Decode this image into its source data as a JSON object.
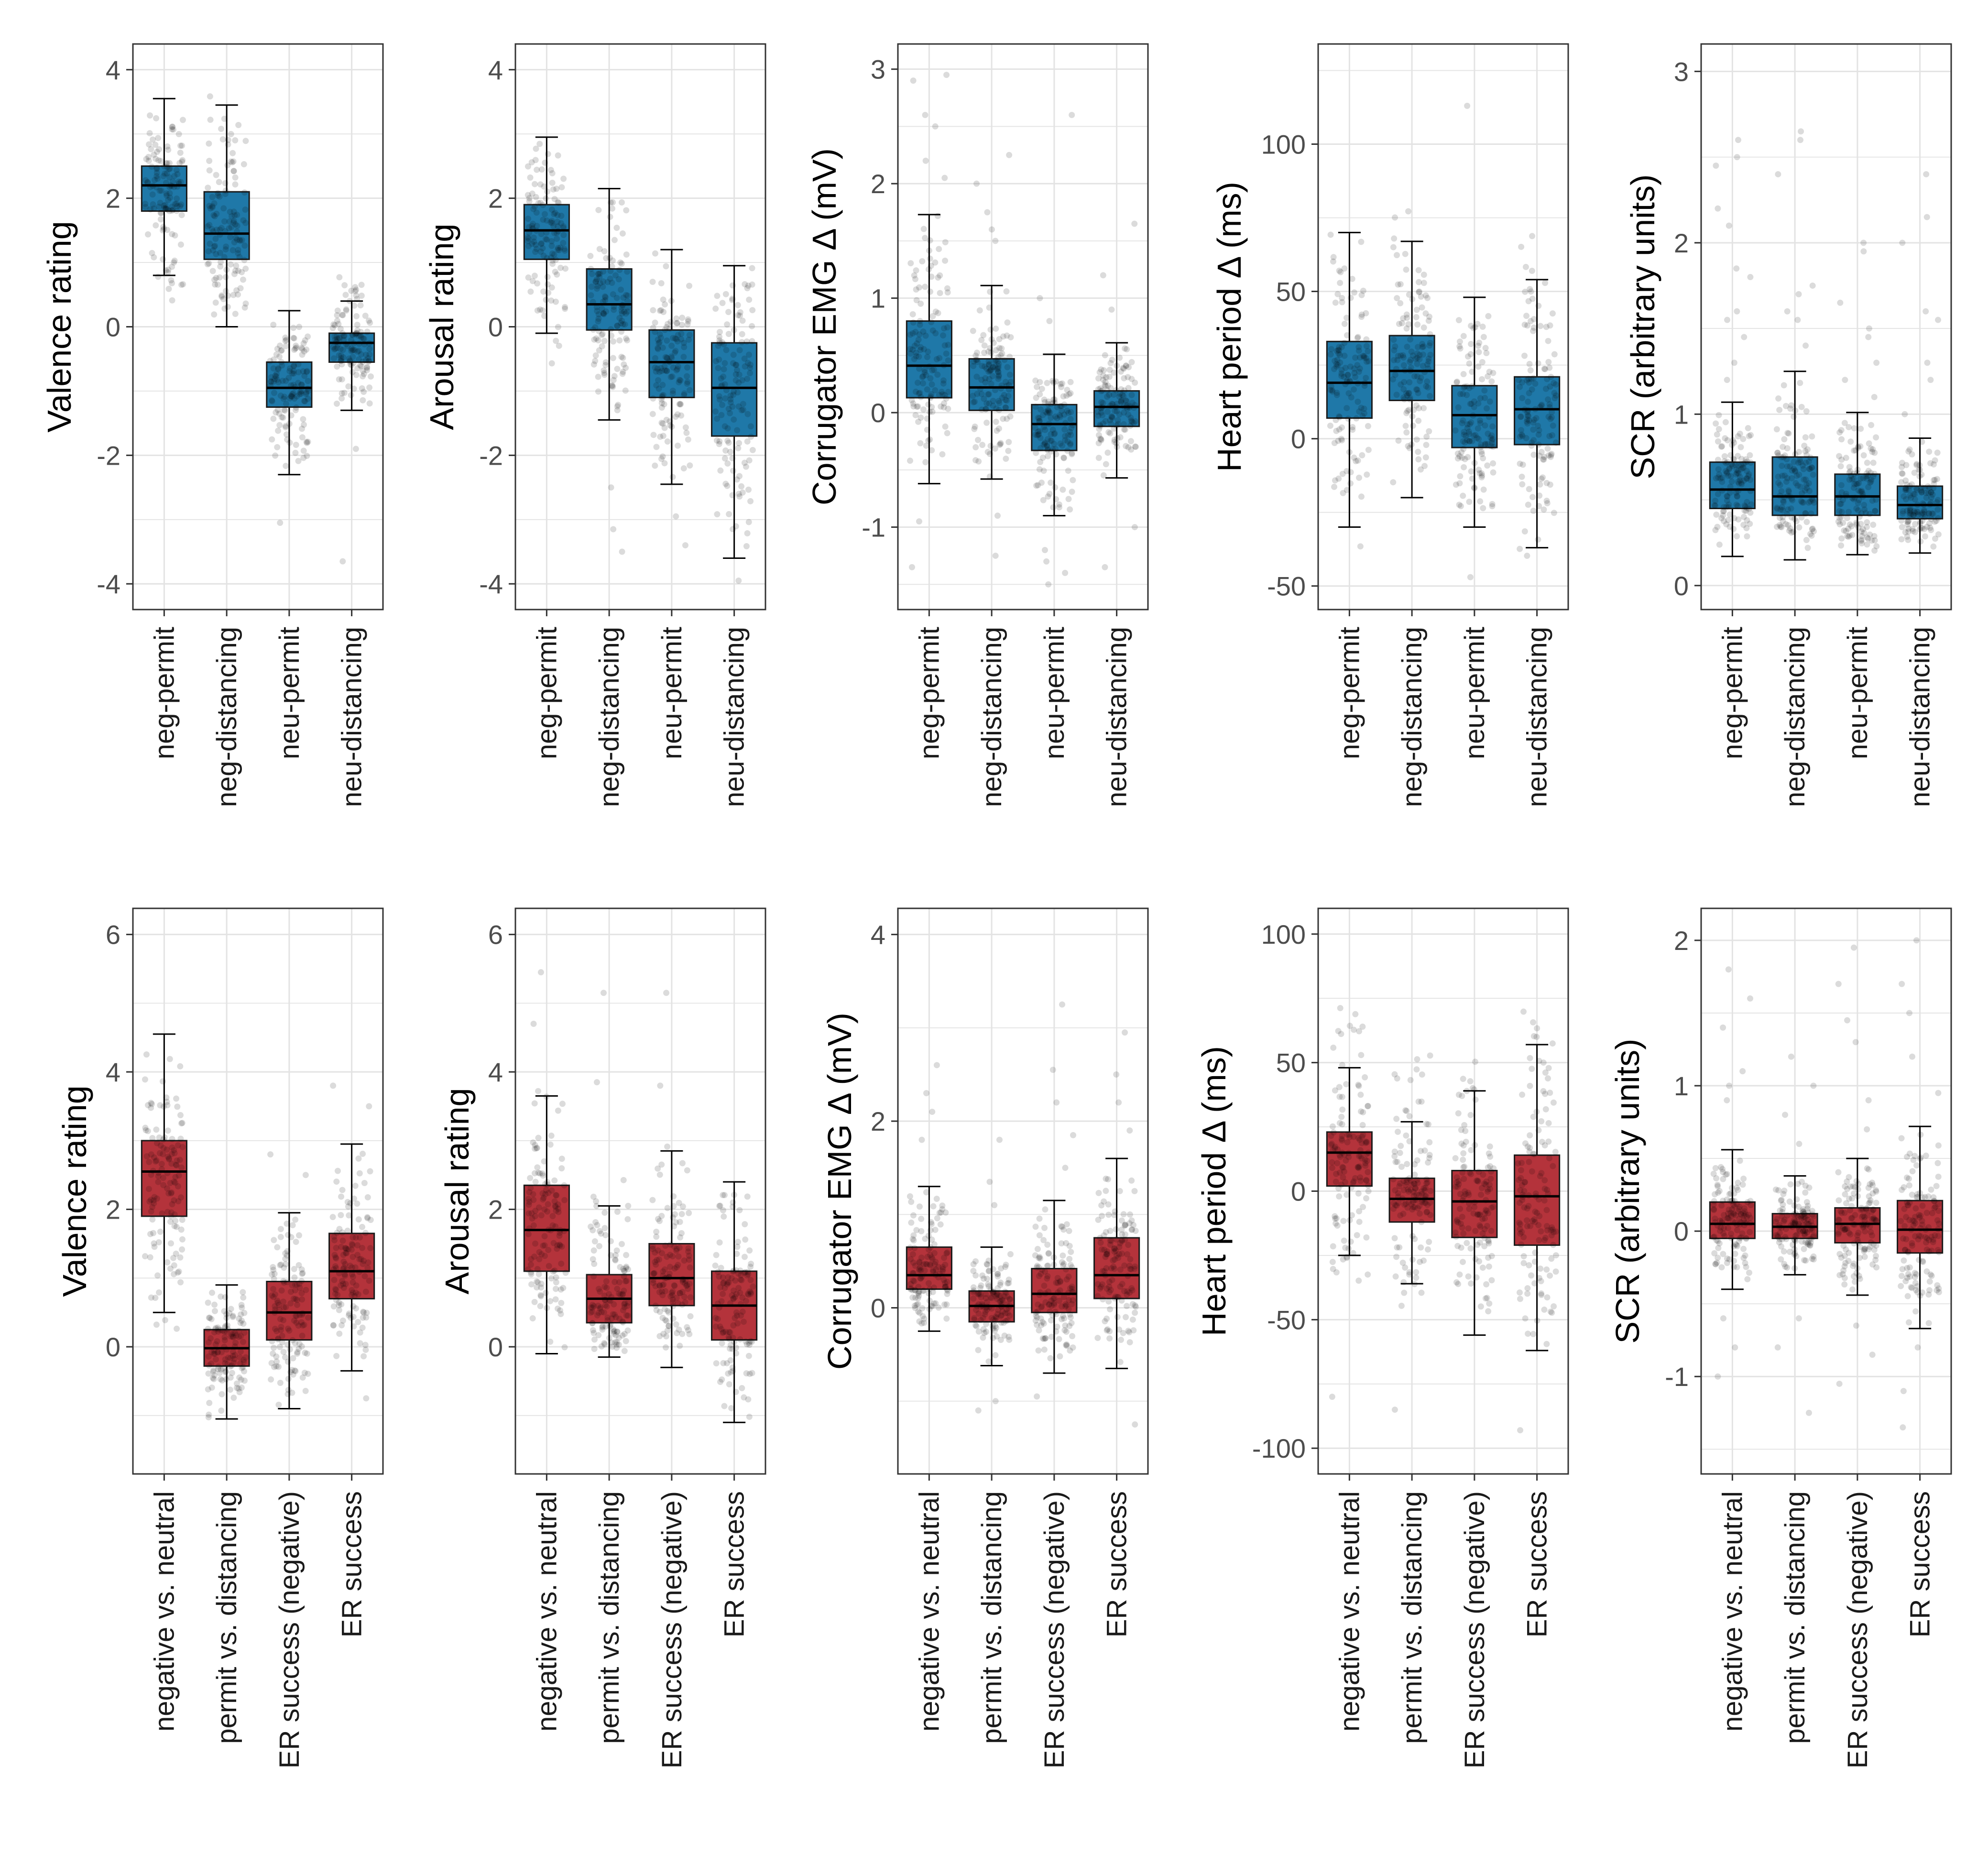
{
  "figure": {
    "colors": {
      "top_fill": "#1f78a8",
      "bottom_fill": "#b4333b",
      "points": "#000000",
      "grid": "#e3e3e3",
      "frame": "#333333"
    },
    "rows": [
      {
        "name": "conditions",
        "fill": "#1f78a8",
        "categories": [
          "neg-permit",
          "neg-distancing",
          "neu-permit",
          "neu-distancing"
        ]
      },
      {
        "name": "contrasts",
        "fill": "#b4333b",
        "categories": [
          "negative vs. neutral",
          "permit vs. distancing",
          "ER success (negative)",
          "ER success"
        ]
      }
    ]
  },
  "chart_data": [
    {
      "type": "box",
      "row": 0,
      "col": 0,
      "ylabel": "Valence rating",
      "ylim": [
        -4.4,
        4.4
      ],
      "yticks": [
        4,
        2,
        0,
        -2,
        -4
      ],
      "ytick_labels": [
        "4",
        "2",
        "0",
        "-2",
        "-4"
      ],
      "categories": [
        "neg-permit",
        "neg-distancing",
        "neu-permit",
        "neu-distancing"
      ],
      "boxes": [
        {
          "whisker_low": 0.8,
          "q1": 1.8,
          "median": 2.2,
          "q3": 2.5,
          "whisker_high": 3.55,
          "points_low": 0.1,
          "points_high": 3.5,
          "outliers": []
        },
        {
          "whisker_low": 0.0,
          "q1": 1.05,
          "median": 1.45,
          "q3": 2.1,
          "whisker_high": 3.45,
          "points_low": -0.05,
          "points_high": 3.7,
          "outliers": []
        },
        {
          "whisker_low": -2.3,
          "q1": -1.25,
          "median": -0.95,
          "q3": -0.55,
          "whisker_high": 0.25,
          "points_low": -2.35,
          "points_high": 0.2,
          "outliers": [
            -3.05
          ]
        },
        {
          "whisker_low": -1.3,
          "q1": -0.55,
          "median": -0.25,
          "q3": -0.1,
          "whisker_high": 0.4,
          "points_low": -1.4,
          "points_high": 0.85,
          "outliers": [
            -3.65,
            -1.9
          ]
        }
      ]
    },
    {
      "type": "box",
      "row": 0,
      "col": 1,
      "ylabel": "Arousal rating",
      "ylim": [
        -4.4,
        4.4
      ],
      "yticks": [
        4,
        2,
        0,
        -2,
        -4
      ],
      "ytick_labels": [
        "4",
        "2",
        "0",
        "-2",
        "-4"
      ],
      "categories": [
        "neg-permit",
        "neg-distancing",
        "neu-permit",
        "neu-distancing"
      ],
      "boxes": [
        {
          "whisker_low": -0.1,
          "q1": 1.05,
          "median": 1.5,
          "q3": 1.9,
          "whisker_high": 2.95,
          "points_low": -0.85,
          "points_high": 3.1,
          "outliers": []
        },
        {
          "whisker_low": -1.45,
          "q1": -0.05,
          "median": 0.35,
          "q3": 0.9,
          "whisker_high": 2.15,
          "points_low": -1.5,
          "points_high": 2.4,
          "outliers": [
            -3.15,
            -3.5,
            -2.5
          ]
        },
        {
          "whisker_low": -2.45,
          "q1": -1.1,
          "median": -0.55,
          "q3": -0.05,
          "whisker_high": 1.2,
          "points_low": -2.5,
          "points_high": 1.2,
          "outliers": [
            -2.95,
            -3.4
          ]
        },
        {
          "whisker_low": -3.6,
          "q1": -1.7,
          "median": -0.95,
          "q3": -0.25,
          "whisker_high": 0.95,
          "points_low": -3.6,
          "points_high": 0.95,
          "outliers": [
            -3.95
          ]
        }
      ]
    },
    {
      "type": "box",
      "row": 0,
      "col": 2,
      "ylabel": "Corrugator EMG Δ (mV)",
      "ylim": [
        -1.72,
        3.22
      ],
      "yticks": [
        3,
        2,
        1,
        0,
        -1
      ],
      "ytick_labels": [
        "3",
        "2",
        "1",
        "0",
        "-1"
      ],
      "categories": [
        "neg-permit",
        "neg-distancing",
        "neu-permit",
        "neu-distancing"
      ],
      "boxes": [
        {
          "whisker_low": -0.62,
          "q1": 0.13,
          "median": 0.41,
          "q3": 0.8,
          "whisker_high": 1.73,
          "points_low": -0.65,
          "points_high": 1.75,
          "outliers": [
            2.95,
            2.9,
            2.6,
            2.5,
            2.2,
            2.05,
            -1.35,
            -0.95
          ]
        },
        {
          "whisker_low": -0.58,
          "q1": 0.02,
          "median": 0.22,
          "q3": 0.47,
          "whisker_high": 1.11,
          "points_low": -0.6,
          "points_high": 1.1,
          "outliers": [
            2.25,
            2.0,
            1.75,
            1.6,
            1.5,
            -1.25,
            -0.9
          ]
        },
        {
          "whisker_low": -0.9,
          "q1": -0.33,
          "median": -0.1,
          "q3": 0.07,
          "whisker_high": 0.51,
          "points_low": -0.95,
          "points_high": 0.5,
          "outliers": [
            2.6,
            1.0,
            0.8,
            -1.5,
            -1.4,
            -1.3,
            -1.2
          ]
        },
        {
          "whisker_low": -0.57,
          "q1": -0.12,
          "median": 0.05,
          "q3": 0.19,
          "whisker_high": 0.61,
          "points_low": -0.6,
          "points_high": 0.6,
          "outliers": [
            1.65,
            1.2,
            0.9,
            -1.35,
            -1.0
          ]
        }
      ]
    },
    {
      "type": "box",
      "row": 0,
      "col": 3,
      "ylabel": "Heart period Δ (ms)",
      "ylim": [
        -58,
        134
      ],
      "yticks": [
        100,
        50,
        0,
        -50
      ],
      "ytick_labels": [
        "100",
        "50",
        "0",
        "-50"
      ],
      "categories": [
        "neg-permit",
        "neg-distancing",
        "neu-permit",
        "neu-distancing"
      ],
      "boxes": [
        {
          "whisker_low": -30,
          "q1": 7,
          "median": 19,
          "q3": 33,
          "whisker_high": 70,
          "points_low": -42,
          "points_high": 80,
          "outliers": []
        },
        {
          "whisker_low": -20,
          "q1": 13,
          "median": 23,
          "q3": 35,
          "whisker_high": 67,
          "points_low": -22,
          "points_high": 82,
          "outliers": []
        },
        {
          "whisker_low": -30,
          "q1": -3,
          "median": 8,
          "q3": 18,
          "whisker_high": 48,
          "points_low": -30,
          "points_high": 55,
          "outliers": [
            113,
            -47
          ]
        },
        {
          "whisker_low": -37,
          "q1": -2,
          "median": 10,
          "q3": 21,
          "whisker_high": 54,
          "points_low": -43,
          "points_high": 72,
          "outliers": []
        }
      ]
    },
    {
      "type": "box",
      "row": 0,
      "col": 4,
      "ylabel": "SCR (arbitrary units)",
      "ylim": [
        -0.14,
        3.16
      ],
      "yticks": [
        3,
        2,
        1,
        0
      ],
      "ytick_labels": [
        "3",
        "2",
        "1",
        "0"
      ],
      "categories": [
        "neg-permit",
        "neg-distancing",
        "neu-permit",
        "neu-distancing"
      ],
      "boxes": [
        {
          "whisker_low": 0.17,
          "q1": 0.45,
          "median": 0.56,
          "q3": 0.72,
          "whisker_high": 1.07,
          "points_low": 0.18,
          "points_high": 1.05,
          "outliers": [
            2.6,
            2.5,
            2.45,
            2.2,
            2.1,
            1.85,
            1.8,
            1.6,
            1.55,
            1.45,
            1.3,
            1.2
          ]
        },
        {
          "whisker_low": 0.15,
          "q1": 0.41,
          "median": 0.52,
          "q3": 0.75,
          "whisker_high": 1.25,
          "points_low": 0.15,
          "points_high": 1.25,
          "outliers": [
            2.65,
            2.6,
            2.4,
            1.75,
            1.7,
            1.6,
            1.55,
            1.4
          ]
        },
        {
          "whisker_low": 0.18,
          "q1": 0.41,
          "median": 0.52,
          "q3": 0.65,
          "whisker_high": 1.01,
          "points_low": 0.18,
          "points_high": 1.0,
          "outliers": [
            2.0,
            1.95,
            1.65,
            1.5,
            1.45,
            1.3,
            1.2,
            1.1
          ]
        },
        {
          "whisker_low": 0.19,
          "q1": 0.39,
          "median": 0.47,
          "q3": 0.58,
          "whisker_high": 0.86,
          "points_low": 0.18,
          "points_high": 0.86,
          "outliers": [
            2.4,
            2.15,
            2.0,
            1.6,
            1.55,
            1.3,
            1.2,
            1.0
          ]
        }
      ]
    },
    {
      "type": "box",
      "row": 1,
      "col": 0,
      "ylabel": "Valence rating",
      "ylim": [
        -1.85,
        6.38
      ],
      "yticks": [
        6,
        4,
        2,
        0
      ],
      "ytick_labels": [
        "6",
        "4",
        "2",
        "0"
      ],
      "categories": [
        "negative vs. neutral",
        "permit vs. distancing",
        "ER success (negative)",
        "ER success"
      ],
      "boxes": [
        {
          "whisker_low": 0.5,
          "q1": 1.9,
          "median": 2.55,
          "q3": 3.0,
          "whisker_high": 4.55,
          "points_low": 0.1,
          "points_high": 4.5,
          "outliers": []
        },
        {
          "whisker_low": -1.05,
          "q1": -0.28,
          "median": -0.02,
          "q3": 0.25,
          "whisker_high": 0.9,
          "points_low": -1.05,
          "points_high": 0.9,
          "outliers": []
        },
        {
          "whisker_low": -0.9,
          "q1": 0.1,
          "median": 0.5,
          "q3": 0.95,
          "whisker_high": 1.95,
          "points_low": -0.9,
          "points_high": 1.95,
          "outliers": [
            2.8,
            2.5
          ]
        },
        {
          "whisker_low": -0.35,
          "q1": 0.7,
          "median": 1.1,
          "q3": 1.65,
          "whisker_high": 2.95,
          "points_low": -0.35,
          "points_high": 2.95,
          "outliers": [
            3.8,
            3.5,
            -0.75
          ]
        }
      ]
    },
    {
      "type": "box",
      "row": 1,
      "col": 1,
      "ylabel": "Arousal rating",
      "ylim": [
        -1.85,
        6.38
      ],
      "yticks": [
        6,
        4,
        2,
        0
      ],
      "ytick_labels": [
        "6",
        "4",
        "2",
        "0"
      ],
      "categories": [
        "negative vs. neutral",
        "permit vs. distancing",
        "ER success (negative)",
        "ER success"
      ],
      "boxes": [
        {
          "whisker_low": -0.1,
          "q1": 1.1,
          "median": 1.7,
          "q3": 2.35,
          "whisker_high": 3.65,
          "points_low": -0.05,
          "points_high": 4.0,
          "outliers": [
            5.45,
            4.7
          ]
        },
        {
          "whisker_low": -0.15,
          "q1": 0.35,
          "median": 0.7,
          "q3": 1.05,
          "whisker_high": 2.05,
          "points_low": -0.15,
          "points_high": 2.5,
          "outliers": [
            5.15,
            3.85
          ]
        },
        {
          "whisker_low": -0.3,
          "q1": 0.6,
          "median": 1.0,
          "q3": 1.5,
          "whisker_high": 2.85,
          "points_low": -0.3,
          "points_high": 3.0,
          "outliers": [
            5.15,
            3.8
          ]
        },
        {
          "whisker_low": -1.1,
          "q1": 0.1,
          "median": 0.6,
          "q3": 1.1,
          "whisker_high": 2.4,
          "points_low": -1.1,
          "points_high": 3.0,
          "outliers": []
        }
      ]
    },
    {
      "type": "box",
      "row": 1,
      "col": 2,
      "ylabel": "Corrugator EMG Δ (mV)",
      "ylim": [
        -1.78,
        4.28
      ],
      "yticks": [
        4,
        2,
        0
      ],
      "ytick_labels": [
        "4",
        "2",
        "0"
      ],
      "categories": [
        "negative vs. neutral",
        "permit vs. distancing",
        "ER success (negative)",
        "ER success"
      ],
      "boxes": [
        {
          "whisker_low": -0.25,
          "q1": 0.2,
          "median": 0.35,
          "q3": 0.65,
          "whisker_high": 1.3,
          "points_low": -0.25,
          "points_high": 1.35,
          "outliers": [
            2.6,
            2.3,
            2.1,
            1.8
          ]
        },
        {
          "whisker_low": -0.62,
          "q1": -0.15,
          "median": 0.02,
          "q3": 0.18,
          "whisker_high": 0.65,
          "points_low": -0.65,
          "points_high": 0.65,
          "outliers": [
            1.8,
            1.35,
            1.1,
            -1.1,
            -1.0
          ]
        },
        {
          "whisker_low": -0.7,
          "q1": -0.05,
          "median": 0.15,
          "q3": 0.42,
          "whisker_high": 1.15,
          "points_low": -0.7,
          "points_high": 1.15,
          "outliers": [
            3.25,
            2.55,
            2.2,
            1.85,
            1.5,
            -0.95
          ]
        },
        {
          "whisker_low": -0.65,
          "q1": 0.1,
          "median": 0.35,
          "q3": 0.75,
          "whisker_high": 1.6,
          "points_low": -0.65,
          "points_high": 1.6,
          "outliers": [
            2.95,
            2.5,
            2.2,
            1.9,
            -1.25
          ]
        }
      ]
    },
    {
      "type": "box",
      "row": 1,
      "col": 3,
      "ylabel": "Heart period Δ (ms)",
      "ylim": [
        -110,
        110
      ],
      "yticks": [
        100,
        50,
        0,
        -50,
        -100
      ],
      "ytick_labels": [
        "100",
        "50",
        "0",
        "-50",
        "-100"
      ],
      "categories": [
        "negative vs. neutral",
        "permit vs. distancing",
        "ER success (negative)",
        "ER success"
      ],
      "boxes": [
        {
          "whisker_low": -25,
          "q1": 2,
          "median": 15,
          "q3": 23,
          "whisker_high": 48,
          "points_low": -40,
          "points_high": 75,
          "outliers": [
            -80
          ]
        },
        {
          "whisker_low": -36,
          "q1": -12,
          "median": -3,
          "q3": 5,
          "whisker_high": 27,
          "points_low": -55,
          "points_high": 62,
          "outliers": [
            -85
          ]
        },
        {
          "whisker_low": -56,
          "q1": -18,
          "median": -4,
          "q3": 8,
          "whisker_high": 39,
          "points_low": -56,
          "points_high": 55,
          "outliers": []
        },
        {
          "whisker_low": -62,
          "q1": -21,
          "median": -2,
          "q3": 14,
          "whisker_high": 57,
          "points_low": -62,
          "points_high": 75,
          "outliers": [
            -93
          ]
        }
      ]
    },
    {
      "type": "box",
      "row": 1,
      "col": 4,
      "ylabel": "SCR (arbitrary units)",
      "ylim": [
        -1.67,
        2.22
      ],
      "yticks": [
        2,
        1,
        0,
        -1
      ],
      "ytick_labels": [
        "2",
        "1",
        "0",
        "-1"
      ],
      "categories": [
        "negative vs. neutral",
        "permit vs. distancing",
        "ER success (negative)",
        "ER success"
      ],
      "boxes": [
        {
          "whisker_low": -0.4,
          "q1": -0.05,
          "median": 0.05,
          "q3": 0.2,
          "whisker_high": 0.56,
          "points_low": -0.4,
          "points_high": 0.56,
          "outliers": [
            1.8,
            1.6,
            1.4,
            1.1,
            1.0,
            0.9,
            -0.6,
            -0.8,
            -1.0
          ]
        },
        {
          "whisker_low": -0.3,
          "q1": -0.05,
          "median": 0.03,
          "q3": 0.12,
          "whisker_high": 0.38,
          "points_low": -0.3,
          "points_high": 0.38,
          "outliers": [
            1.2,
            1.0,
            0.8,
            0.6,
            -0.6,
            -0.8,
            -1.25
          ]
        },
        {
          "whisker_low": -0.44,
          "q1": -0.08,
          "median": 0.05,
          "q3": 0.16,
          "whisker_high": 0.5,
          "points_low": -0.45,
          "points_high": 0.5,
          "outliers": [
            1.95,
            1.7,
            1.45,
            1.3,
            0.9,
            0.7,
            -0.65,
            -0.85,
            -1.05
          ]
        },
        {
          "whisker_low": -0.67,
          "q1": -0.15,
          "median": 0.01,
          "q3": 0.21,
          "whisker_high": 0.72,
          "points_low": -0.67,
          "points_high": 0.72,
          "outliers": [
            2.0,
            1.7,
            1.5,
            1.2,
            0.95,
            -0.8,
            -1.1,
            -1.35
          ]
        }
      ]
    }
  ]
}
